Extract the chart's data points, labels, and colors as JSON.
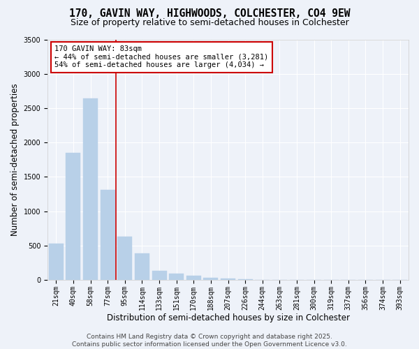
{
  "title_line1": "170, GAVIN WAY, HIGHWOODS, COLCHESTER, CO4 9EW",
  "title_line2": "Size of property relative to semi-detached houses in Colchester",
  "xlabel": "Distribution of semi-detached houses by size in Colchester",
  "ylabel": "Number of semi-detached properties",
  "categories": [
    "21sqm",
    "40sqm",
    "58sqm",
    "77sqm",
    "95sqm",
    "114sqm",
    "133sqm",
    "151sqm",
    "170sqm",
    "188sqm",
    "207sqm",
    "226sqm",
    "244sqm",
    "263sqm",
    "281sqm",
    "300sqm",
    "319sqm",
    "337sqm",
    "356sqm",
    "374sqm",
    "393sqm"
  ],
  "values": [
    530,
    1850,
    2640,
    1310,
    630,
    390,
    130,
    95,
    60,
    30,
    20,
    10,
    5,
    3,
    2,
    2,
    1,
    1,
    1,
    0,
    0
  ],
  "bar_color": "#b8d0e8",
  "bar_edgecolor": "#b8d0e8",
  "vline_color": "#cc0000",
  "vline_x_index": 3,
  "annotation_text": "170 GAVIN WAY: 83sqm\n← 44% of semi-detached houses are smaller (3,281)\n54% of semi-detached houses are larger (4,034) →",
  "annotation_box_edgecolor": "#cc0000",
  "ylim": [
    0,
    3500
  ],
  "yticks": [
    0,
    500,
    1000,
    1500,
    2000,
    2500,
    3000,
    3500
  ],
  "footer_text": "Contains HM Land Registry data © Crown copyright and database right 2025.\nContains public sector information licensed under the Open Government Licence v3.0.",
  "background_color": "#eef2f9",
  "plot_bg_color": "#eef2f9",
  "grid_color": "#ffffff",
  "title_fontsize": 10.5,
  "subtitle_fontsize": 9,
  "axis_label_fontsize": 8.5,
  "tick_fontsize": 7,
  "footer_fontsize": 6.5,
  "annotation_fontsize": 7.5
}
